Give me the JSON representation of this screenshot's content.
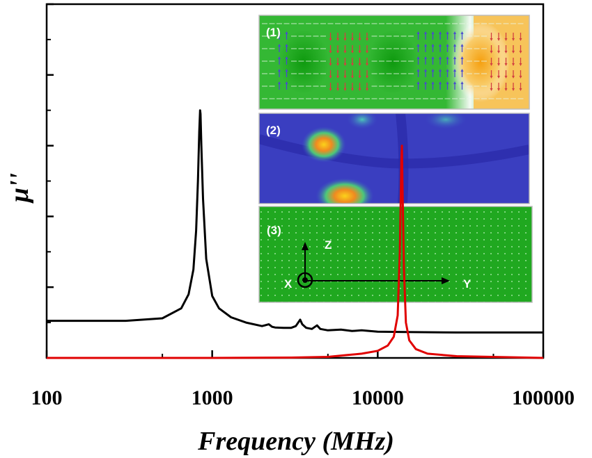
{
  "chart_data": {
    "type": "line",
    "xlabel": "Frequency (MHz)",
    "ylabel": "μ''",
    "x_scale": "log",
    "xlim": [
      100,
      100000
    ],
    "ylim": [
      0,
      1
    ],
    "x_ticks": [
      {
        "value": 100,
        "label": "100"
      },
      {
        "value": 1000,
        "label": "1000"
      },
      {
        "value": 10000,
        "label": "10000"
      },
      {
        "value": 100000,
        "label": "100000"
      }
    ],
    "y_tick_labels_shown": false,
    "series": [
      {
        "color": "#000000",
        "x": [
          100,
          300,
          500,
          650,
          720,
          770,
          800,
          820,
          835,
          845,
          850,
          860,
          880,
          920,
          1000,
          1100,
          1300,
          1600,
          2000,
          2200,
          2300,
          2400,
          2700,
          3000,
          3200,
          3400,
          3500,
          3700,
          4000,
          4300,
          4500,
          5000,
          6000,
          7000,
          8000,
          10000,
          15000,
          30000,
          100000
        ],
        "y": [
          0.105,
          0.105,
          0.112,
          0.14,
          0.18,
          0.25,
          0.36,
          0.5,
          0.64,
          0.7,
          0.69,
          0.6,
          0.45,
          0.28,
          0.175,
          0.14,
          0.115,
          0.1,
          0.09,
          0.095,
          0.088,
          0.086,
          0.085,
          0.085,
          0.09,
          0.108,
          0.095,
          0.085,
          0.082,
          0.092,
          0.082,
          0.078,
          0.08,
          0.076,
          0.078,
          0.074,
          0.073,
          0.072,
          0.072
        ]
      },
      {
        "color": "#e00000",
        "x": [
          100,
          1000,
          3000,
          5000,
          6500,
          8000,
          10000,
          11500,
          12500,
          13200,
          13600,
          13900,
          14000,
          14100,
          14400,
          14800,
          15500,
          17000,
          20000,
          30000,
          100000
        ],
        "y": [
          0.0,
          0.0,
          0.001,
          0.003,
          0.008,
          0.012,
          0.02,
          0.035,
          0.06,
          0.12,
          0.3,
          0.56,
          0.6,
          0.5,
          0.25,
          0.1,
          0.05,
          0.025,
          0.012,
          0.005,
          0.0
        ]
      }
    ],
    "insets": [
      {
        "label": "(1)"
      },
      {
        "label": "(2)"
      },
      {
        "label": "(3)",
        "axes": {
          "z": "Z",
          "y": "Y",
          "x": "X"
        }
      }
    ]
  },
  "colors": {
    "field_green": "#2fb52f",
    "field_orange": "#f4a21a",
    "map_blue": "#3c3fbf",
    "map_yellow": "#f7c21a",
    "arrow_blue": "#4a4ad0",
    "arrow_red": "#d24040",
    "axis": "#000000"
  }
}
